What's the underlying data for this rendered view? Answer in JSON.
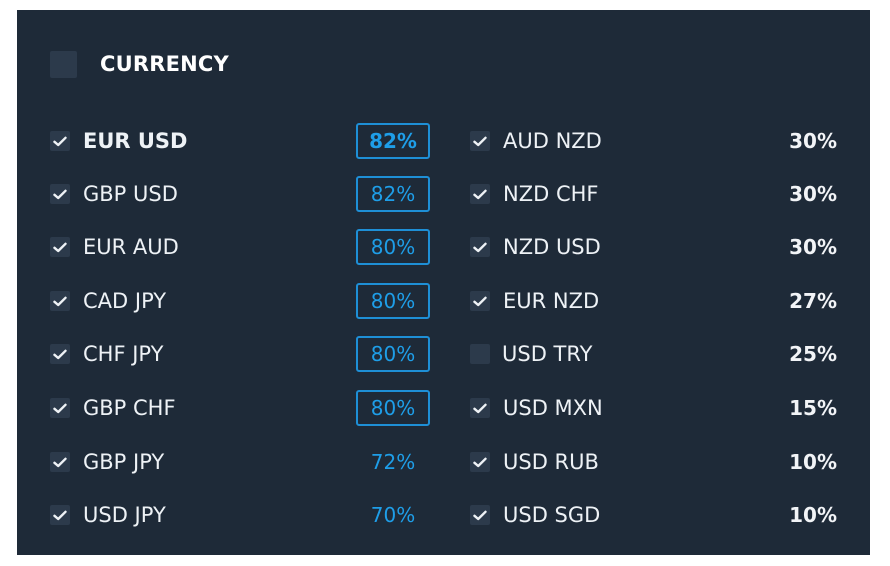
{
  "header": {
    "title": "CURRENCY"
  },
  "left": [
    {
      "pair": "EUR USD",
      "payout": "82%",
      "checked": true,
      "bold": true,
      "style": "boxed"
    },
    {
      "pair": "GBP USD",
      "payout": "82%",
      "checked": true,
      "bold": false,
      "style": "boxed"
    },
    {
      "pair": "EUR AUD",
      "payout": "80%",
      "checked": true,
      "bold": false,
      "style": "boxed"
    },
    {
      "pair": "CAD JPY",
      "payout": "80%",
      "checked": true,
      "bold": false,
      "style": "boxed"
    },
    {
      "pair": "CHF JPY",
      "payout": "80%",
      "checked": true,
      "bold": false,
      "style": "boxed"
    },
    {
      "pair": "GBP CHF",
      "payout": "80%",
      "checked": true,
      "bold": false,
      "style": "boxed"
    },
    {
      "pair": "GBP JPY",
      "payout": "72%",
      "checked": true,
      "bold": false,
      "style": "plain"
    },
    {
      "pair": "USD JPY",
      "payout": "70%",
      "checked": true,
      "bold": false,
      "style": "plain"
    }
  ],
  "right": [
    {
      "pair": "AUD NZD",
      "payout": "30%",
      "checked": true
    },
    {
      "pair": "NZD CHF",
      "payout": "30%",
      "checked": true
    },
    {
      "pair": "NZD USD",
      "payout": "30%",
      "checked": true
    },
    {
      "pair": "EUR NZD",
      "payout": "27%",
      "checked": true
    },
    {
      "pair": "USD TRY",
      "payout": "25%",
      "checked": false
    },
    {
      "pair": "USD MXN",
      "payout": "15%",
      "checked": true
    },
    {
      "pair": "USD RUB",
      "payout": "10%",
      "checked": true
    },
    {
      "pair": "USD SGD",
      "payout": "10%",
      "checked": true
    }
  ],
  "colors": {
    "panel_bg": "#1e2a38",
    "accent_blue": "#1e9ee8",
    "text": "#eef2f6"
  },
  "icons": {
    "check": "check-icon"
  }
}
